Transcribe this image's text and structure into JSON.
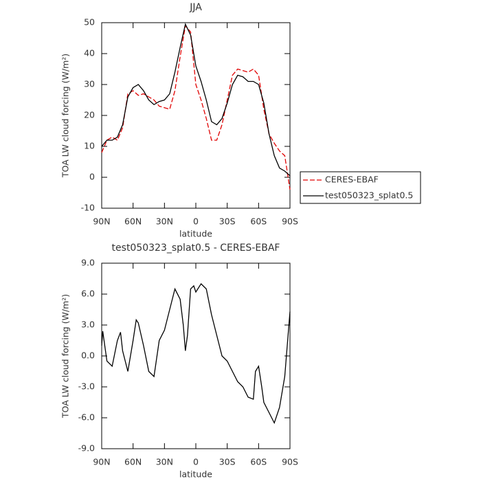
{
  "chart_data": [
    {
      "type": "line",
      "title": "JJA",
      "xlabel": "latitude",
      "ylabel": "TOA LW cloud forcing (W/m²)",
      "x": [
        90,
        85,
        80,
        75,
        70,
        65,
        60,
        55,
        50,
        45,
        40,
        35,
        30,
        25,
        20,
        15,
        10,
        5,
        0,
        -5,
        -10,
        -15,
        -20,
        -25,
        -30,
        -35,
        -40,
        -45,
        -50,
        -55,
        -60,
        -65,
        -70,
        -75,
        -80,
        -85,
        -90
      ],
      "series": [
        {
          "name": "CERES-EBAF",
          "color": "#e00000",
          "dash": true,
          "values": [
            8,
            12,
            13,
            12,
            16,
            27,
            28,
            26.5,
            27,
            26,
            25,
            23,
            22.5,
            22,
            28,
            39,
            49,
            47,
            30,
            25,
            19,
            12,
            12,
            17,
            25,
            33,
            35,
            34.5,
            34,
            35,
            33,
            22,
            14,
            11,
            8.5,
            7,
            -4
          ]
        },
        {
          "name": "test050323_splat0.5",
          "color": "#000000",
          "dash": false,
          "values": [
            10,
            12,
            12,
            13,
            17,
            26,
            29,
            30,
            28,
            25,
            23.5,
            24.5,
            25,
            27,
            34,
            42,
            49.5,
            46,
            36,
            31,
            25,
            18,
            17,
            19,
            24,
            30,
            33,
            32.5,
            31,
            31,
            30,
            24,
            14,
            7,
            3,
            2,
            0.5
          ]
        }
      ],
      "xlim": [
        90,
        -90
      ],
      "xticks": [
        {
          "value": 90,
          "label": "90N"
        },
        {
          "value": 60,
          "label": "60N"
        },
        {
          "value": 30,
          "label": "30N"
        },
        0,
        {
          "value": -30,
          "label": "30S"
        },
        {
          "value": -60,
          "label": "60S"
        },
        {
          "value": -90,
          "label": "90S"
        }
      ],
      "ylim": [
        -10,
        50
      ],
      "yticks": [
        -10,
        0,
        10,
        20,
        30,
        40,
        50
      ],
      "legend": "right"
    },
    {
      "type": "line",
      "title": "test050323_splat0.5 - CERES-EBAF",
      "xlabel": "latitude",
      "ylabel": "TOA LW cloud forcing (W/m²)",
      "x": [
        90,
        89,
        85,
        80,
        75,
        72,
        70,
        65,
        60,
        57,
        55,
        50,
        45,
        40,
        35,
        30,
        25,
        20,
        15,
        12,
        10,
        8,
        5,
        2,
        0,
        -5,
        -10,
        -15,
        -20,
        -25,
        -30,
        -35,
        -40,
        -45,
        -50,
        -55,
        -57,
        -60,
        -63,
        -65,
        -70,
        -75,
        -80,
        -85,
        -90
      ],
      "values": [
        1,
        2.4,
        -0.5,
        -1,
        1.5,
        2.3,
        0.5,
        -1.5,
        1.5,
        3.5,
        3.2,
        1,
        -1.5,
        -2,
        1.5,
        2.5,
        4.5,
        6.5,
        5.5,
        3,
        0.5,
        2,
        6.5,
        6.8,
        6.2,
        7,
        6.5,
        4,
        2,
        0,
        -0.5,
        -1.5,
        -2.5,
        -3,
        -4,
        -4.2,
        -1.5,
        -1,
        -3,
        -4.5,
        -5.5,
        -6.5,
        -5,
        -2,
        4.3
      ],
      "color": "#000000",
      "xlim": [
        90,
        -90
      ],
      "xticks": [
        {
          "value": 90,
          "label": "90N"
        },
        {
          "value": 60,
          "label": "60N"
        },
        {
          "value": 30,
          "label": "30N"
        },
        0,
        {
          "value": -30,
          "label": "30S"
        },
        {
          "value": -60,
          "label": "60S"
        },
        {
          "value": -90,
          "label": "90S"
        }
      ],
      "ylim": [
        -9,
        9
      ],
      "yticks": [
        {
          "value": -9,
          "label": "-9.0"
        },
        {
          "value": -6,
          "label": "-6.0"
        },
        {
          "value": -3,
          "label": "-3.0"
        },
        {
          "value": 0,
          "label": "0.0"
        },
        {
          "value": 3,
          "label": "3.0"
        },
        {
          "value": 6,
          "label": "6.0"
        },
        {
          "value": 9,
          "label": "9.0"
        }
      ]
    }
  ]
}
